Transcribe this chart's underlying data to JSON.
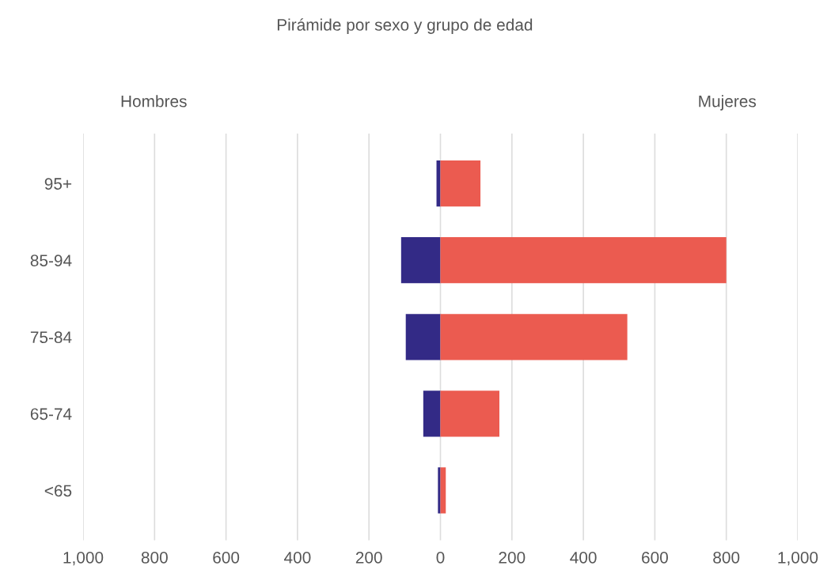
{
  "chart_data": {
    "type": "bar",
    "orientation": "horizontal",
    "title": "Pirámide por sexo y grupo de edad",
    "categories": [
      "95+",
      "85-94",
      "75-84",
      "65-74",
      "<65"
    ],
    "series": [
      {
        "color": "#332a86",
        "values": [
          -11,
          -110,
          -97,
          -48,
          -7
        ]
      },
      {
        "color": "#eb5b50",
        "values": [
          112,
          800,
          523,
          165,
          15
        ]
      }
    ],
    "annotations": [
      "Hombres",
      "Mujeres"
    ],
    "stacked": true,
    "xlim": [
      -1000,
      1000
    ],
    "xticks": [
      {
        "value": -1000,
        "label": "1,000"
      },
      {
        "value": -800,
        "label": "800"
      },
      {
        "value": -600,
        "label": "600"
      },
      {
        "value": -400,
        "label": "400"
      },
      {
        "value": -200,
        "label": "200"
      },
      0,
      200,
      400,
      600,
      800,
      {
        "value": 1000,
        "label": "1,000"
      }
    ],
    "grid": "x",
    "legend": false
  }
}
